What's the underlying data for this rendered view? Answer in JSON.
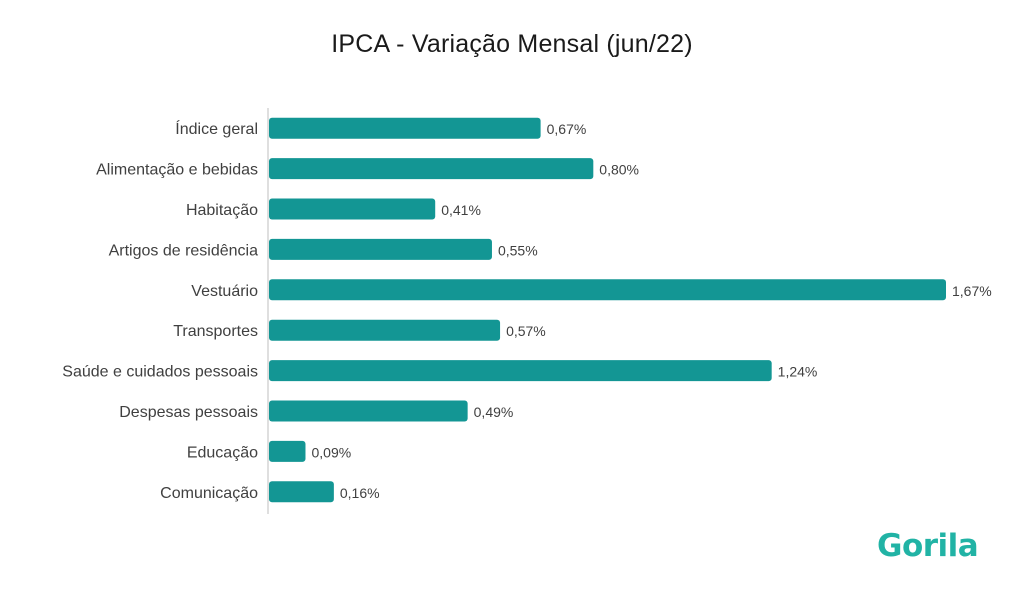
{
  "brand": {
    "logo_text": "Gorila",
    "logo_color": "#21b3a5"
  },
  "colors": {
    "bar": "#139694",
    "axis": "#bfbfbf",
    "label": "#404040",
    "title": "#1a1a1a"
  },
  "chart_data": {
    "type": "bar",
    "orientation": "horizontal",
    "title": "IPCA - Variação Mensal (jun/22)",
    "xlabel": "",
    "ylabel": "",
    "categories": [
      "Índice geral",
      "Alimentação e bebidas",
      "Habitação",
      "Artigos de residência",
      "Vestuário",
      "Transportes",
      "Saúde e cuidados pessoais",
      "Despesas pessoais",
      "Educação",
      "Comunicação"
    ],
    "values": [
      0.67,
      0.8,
      0.41,
      0.55,
      1.67,
      0.57,
      1.24,
      0.49,
      0.09,
      0.16
    ],
    "value_labels": [
      "0,67%",
      "0,80%",
      "0,41%",
      "0,55%",
      "1,67%",
      "0,57%",
      "1,24%",
      "0,49%",
      "0,09%",
      "0,16%"
    ],
    "xlim": [
      0,
      1.67
    ],
    "grid": false,
    "legend": "none"
  }
}
